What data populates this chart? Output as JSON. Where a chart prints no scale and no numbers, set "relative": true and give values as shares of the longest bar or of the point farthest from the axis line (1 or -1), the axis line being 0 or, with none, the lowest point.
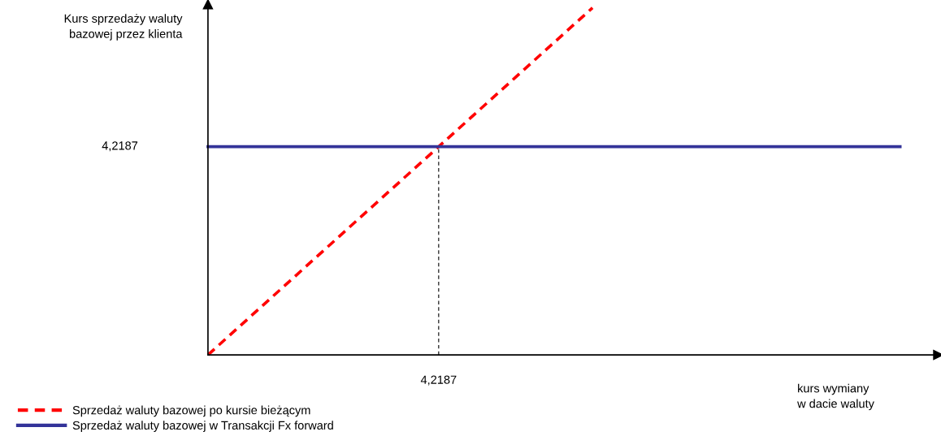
{
  "chart_data": {
    "type": "line",
    "relative": true,
    "xlabel": "kurs wymiany\nw dacie waluty",
    "ylabel": "Kurs sprzedaży waluty\nbazowej przez klienta",
    "categories": [
      null,
      null,
      null,
      null,
      null,
      null,
      null,
      null,
      null,
      null
    ],
    "annotations": [
      "4,2187",
      "4,2187"
    ],
    "legend": "bottom left",
    "marker": "none",
    "series": [
      {
        "name": "Sprzedaż waluty bazowej po kursie bieżącym",
        "color": "#ff0000",
        "line_style": "dashed",
        "values": [
          0,
          0.2,
          0.4,
          0.6,
          0.8,
          1,
          null,
          null,
          null,
          null
        ]
      },
      {
        "name": "Sprzedaż waluty bazowej w Transakcji Fx forward",
        "color": "#333399",
        "line_style": "solid",
        "values": [
          0.6,
          0.6,
          0.6,
          0.6,
          0.6,
          0.6,
          0.6,
          0.6,
          0.6,
          0.6
        ]
      }
    ]
  }
}
